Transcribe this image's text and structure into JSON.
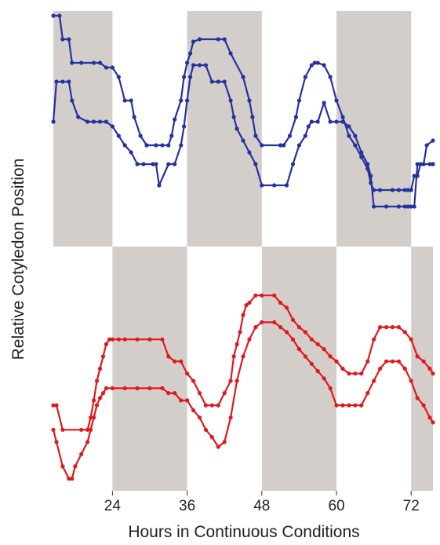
{
  "chart_data": [
    {
      "type": "line",
      "panel": "top",
      "title": "",
      "xlabel": "Hours in Continuous Conditions",
      "ylabel": "Relative Cotyledon Position",
      "xlim": [
        14.5,
        75.5
      ],
      "ylim": [
        0,
        1
      ],
      "grid": false,
      "background_bands": {
        "shaded": [
          [
            14.5,
            24
          ],
          [
            36,
            48
          ],
          [
            60,
            72
          ]
        ],
        "color": "#d3ceca"
      },
      "series_color": "#2432a0",
      "series": [
        {
          "x": [
            14.5,
            15.5,
            16.0,
            17.0,
            17.5,
            19.0,
            21.0,
            22.0,
            23.0,
            24.0,
            25.0,
            26.0,
            27.0,
            27.5,
            28.5,
            29.5,
            31.0,
            32.0,
            33.0,
            33.5,
            34.0,
            35.0,
            35.5,
            36.0,
            36.5,
            37.0,
            38.0,
            41.0,
            42.0,
            43.0,
            45.0,
            46.0,
            46.5,
            47.0,
            48.0,
            51.0,
            51.5,
            52.5,
            53.5,
            54.0,
            55.0,
            56.0,
            56.5,
            57.0,
            58.0,
            59.0,
            60.0,
            61.0,
            62.0,
            63.0,
            64.0,
            65.0,
            65.5,
            66.0,
            67.0,
            69.0,
            70.0,
            71.0,
            71.5,
            72.0,
            72.5,
            73.0,
            73.5,
            74.0,
            74.5,
            75.5
          ],
          "y": [
            0.98,
            0.98,
            0.88,
            0.88,
            0.78,
            0.78,
            0.78,
            0.78,
            0.76,
            0.76,
            0.72,
            0.62,
            0.62,
            0.55,
            0.47,
            0.43,
            0.43,
            0.43,
            0.43,
            0.47,
            0.54,
            0.62,
            0.72,
            0.78,
            0.82,
            0.87,
            0.88,
            0.88,
            0.88,
            0.82,
            0.72,
            0.62,
            0.55,
            0.47,
            0.43,
            0.43,
            0.43,
            0.47,
            0.55,
            0.62,
            0.72,
            0.77,
            0.78,
            0.78,
            0.77,
            0.72,
            0.62,
            0.55,
            0.47,
            0.43,
            0.38,
            0.33,
            0.27,
            0.24,
            0.24,
            0.24,
            0.24,
            0.24,
            0.24,
            0.24,
            0.3,
            0.3,
            0.35,
            0.35,
            0.43,
            0.45
          ]
        },
        {
          "x": [
            14.5,
            15.0,
            16.0,
            17.0,
            17.5,
            18.5,
            20.0,
            21.0,
            22.0,
            23.0,
            24.0,
            25.0,
            26.0,
            27.0,
            28.0,
            29.0,
            30.5,
            31.0,
            31.5,
            33.0,
            34.0,
            35.0,
            35.5,
            36.0,
            36.5,
            37.0,
            38.0,
            39.0,
            40.0,
            41.0,
            42.0,
            43.0,
            43.5,
            44.0,
            45.0,
            46.0,
            47.0,
            48.0,
            50.0,
            52.0,
            53.0,
            54.0,
            55.0,
            55.5,
            56.0,
            57.0,
            58.0,
            59.0,
            60.0,
            61.0,
            62.0,
            63.0,
            64.0,
            65.0,
            65.5,
            66.0,
            68.0,
            70.0,
            71.0,
            71.5,
            72.0,
            72.5,
            73.0,
            74.0,
            75.0,
            75.5
          ],
          "y": [
            0.53,
            0.7,
            0.7,
            0.7,
            0.62,
            0.55,
            0.53,
            0.53,
            0.53,
            0.53,
            0.51,
            0.47,
            0.43,
            0.4,
            0.35,
            0.35,
            0.35,
            0.35,
            0.26,
            0.35,
            0.35,
            0.43,
            0.51,
            0.62,
            0.72,
            0.77,
            0.77,
            0.77,
            0.7,
            0.7,
            0.7,
            0.62,
            0.55,
            0.5,
            0.45,
            0.4,
            0.35,
            0.26,
            0.26,
            0.26,
            0.35,
            0.43,
            0.47,
            0.51,
            0.53,
            0.53,
            0.61,
            0.53,
            0.53,
            0.53,
            0.51,
            0.47,
            0.4,
            0.35,
            0.3,
            0.17,
            0.17,
            0.17,
            0.17,
            0.17,
            0.17,
            0.17,
            0.35,
            0.35,
            0.35,
            0.35
          ]
        }
      ]
    },
    {
      "type": "line",
      "panel": "bottom",
      "title": "",
      "xlabel": "Hours in Continuous Conditions",
      "ylabel": "Relative Cotyledon Position",
      "xlim": [
        14.5,
        75.5
      ],
      "ylim": [
        0,
        1
      ],
      "xticks": [
        24,
        36,
        48,
        60,
        72
      ],
      "grid": false,
      "background_bands": {
        "shaded": [
          [
            24,
            36
          ],
          [
            48,
            60
          ],
          [
            72,
            75.5
          ]
        ],
        "color": "#d3ceca"
      },
      "series_color": "#e0191e",
      "series": [
        {
          "x": [
            14.5,
            15.0,
            16.0,
            19.0,
            20.0,
            20.5,
            21.0,
            21.5,
            22.0,
            22.5,
            23.0,
            23.5,
            24.0,
            25.0,
            26.0,
            28.0,
            30.0,
            32.0,
            33.0,
            34.0,
            35.0,
            36.0,
            37.0,
            38.0,
            39.0,
            40.0,
            41.0,
            42.0,
            43.0,
            43.5,
            44.0,
            44.5,
            45.0,
            45.5,
            46.0,
            47.0,
            48.0,
            50.0,
            51.0,
            52.0,
            53.0,
            54.0,
            55.0,
            56.0,
            57.0,
            58.0,
            59.0,
            60.0,
            61.0,
            62.0,
            63.0,
            64.0,
            65.0,
            66.0,
            67.0,
            68.0,
            69.0,
            70.0,
            71.0,
            72.0,
            73.0,
            74.0,
            75.0,
            75.5
          ],
          "y": [
            0.35,
            0.35,
            0.25,
            0.25,
            0.25,
            0.3,
            0.37,
            0.45,
            0.5,
            0.55,
            0.6,
            0.62,
            0.62,
            0.62,
            0.62,
            0.62,
            0.62,
            0.62,
            0.55,
            0.53,
            0.53,
            0.48,
            0.45,
            0.4,
            0.35,
            0.35,
            0.35,
            0.4,
            0.45,
            0.55,
            0.6,
            0.65,
            0.72,
            0.76,
            0.77,
            0.8,
            0.8,
            0.8,
            0.77,
            0.75,
            0.7,
            0.67,
            0.65,
            0.62,
            0.6,
            0.58,
            0.55,
            0.53,
            0.5,
            0.48,
            0.48,
            0.48,
            0.53,
            0.62,
            0.67,
            0.67,
            0.67,
            0.67,
            0.65,
            0.62,
            0.55,
            0.53,
            0.5,
            0.48
          ]
        },
        {
          "x": [
            14.5,
            15.0,
            16.0,
            17.0,
            17.5,
            18.0,
            19.0,
            20.0,
            20.5,
            21.0,
            21.5,
            22.0,
            22.5,
            23.0,
            24.0,
            26.0,
            28.0,
            30.0,
            32.0,
            33.0,
            34.0,
            35.0,
            36.0,
            37.0,
            38.0,
            39.0,
            40.0,
            41.0,
            42.0,
            43.0,
            44.0,
            45.0,
            46.0,
            47.0,
            48.0,
            50.0,
            51.0,
            52.0,
            53.0,
            54.0,
            55.0,
            56.0,
            57.0,
            58.0,
            59.0,
            60.0,
            61.0,
            62.0,
            63.0,
            64.0,
            65.0,
            66.0,
            67.0,
            68.0,
            69.0,
            70.0,
            71.0,
            72.0,
            73.0,
            74.0,
            75.0,
            75.5
          ],
          "y": [
            0.25,
            0.2,
            0.1,
            0.05,
            0.05,
            0.1,
            0.15,
            0.2,
            0.25,
            0.3,
            0.35,
            0.38,
            0.4,
            0.42,
            0.42,
            0.42,
            0.42,
            0.42,
            0.42,
            0.4,
            0.4,
            0.37,
            0.37,
            0.33,
            0.3,
            0.25,
            0.22,
            0.18,
            0.2,
            0.3,
            0.45,
            0.55,
            0.62,
            0.67,
            0.69,
            0.69,
            0.67,
            0.65,
            0.62,
            0.58,
            0.55,
            0.52,
            0.49,
            0.46,
            0.42,
            0.35,
            0.35,
            0.35,
            0.35,
            0.35,
            0.4,
            0.45,
            0.5,
            0.53,
            0.53,
            0.53,
            0.5,
            0.45,
            0.38,
            0.35,
            0.3,
            0.28
          ]
        }
      ]
    }
  ]
}
